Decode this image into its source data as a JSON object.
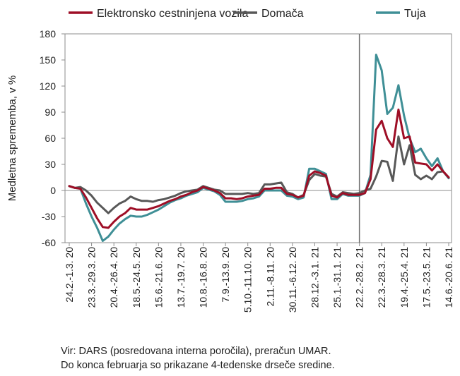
{
  "chart_data": {
    "type": "line",
    "title": "",
    "xlabel": "",
    "ylabel": "Medletna sprememba, v %",
    "ylim": [
      -60,
      180
    ],
    "yticks": [
      -60,
      -30,
      0,
      30,
      60,
      90,
      120,
      150,
      180
    ],
    "grid": false,
    "legend_position": "top",
    "x_tick_labels": [
      "24.2.-1.3. 20",
      "23.3.-29.3. 20",
      "20.4.-26.4. 20",
      "18.5.-24.5. 20",
      "15.6.-21.6. 20",
      "13.7.-19.7. 20",
      "10.8.-16.8. 20",
      "7.9.-13.9. 20",
      "5.10.-11.10. 20",
      "2.11.-8.11. 20",
      "30.11.-6.12. 20",
      "28.12.-3.1. 21",
      "25.1.-31.1. 21",
      "22.2.-28.2. 21",
      "22.3.-28.3. 21",
      "19.4.-25.4. 21",
      "17.5.-23.5. 21",
      "14.6.-20.6. 21"
    ],
    "x_tick_index": [
      0,
      4,
      8,
      12,
      16,
      20,
      24,
      28,
      32,
      36,
      40,
      44,
      48,
      52,
      56,
      60,
      64,
      68
    ],
    "vline_index": 52,
    "series": [
      {
        "name": "Elektronsko cestninjena vozila",
        "color": "#9e0e26",
        "values": [
          5,
          3,
          2,
          -8,
          -20,
          -32,
          -42,
          -43,
          -36,
          -30,
          -26,
          -20,
          -22,
          -22,
          -22,
          -20,
          -18,
          -15,
          -12,
          -10,
          -7,
          -5,
          -2,
          0,
          4,
          2,
          0,
          -3,
          -9,
          -9,
          -10,
          -9,
          -7,
          -6,
          -5,
          2,
          2,
          3,
          3,
          -4,
          -5,
          -8,
          -6,
          17,
          22,
          20,
          17,
          -6,
          -8,
          -3,
          -5,
          -5,
          -5,
          -3,
          13,
          70,
          80,
          60,
          50,
          93,
          60,
          62,
          32,
          31,
          30,
          23,
          30,
          22,
          15
        ]
      },
      {
        "name": "Domača",
        "color": "#585858",
        "values": [
          5,
          3,
          4,
          0,
          -6,
          -14,
          -20,
          -26,
          -20,
          -15,
          -12,
          -7,
          -10,
          -12,
          -12,
          -13,
          -11,
          -10,
          -8,
          -6,
          -3,
          -1,
          0,
          1,
          5,
          3,
          1,
          0,
          -4,
          -4,
          -4,
          -4,
          -3,
          -4,
          -3,
          7,
          7,
          8,
          9,
          -2,
          -4,
          -8,
          -5,
          12,
          19,
          17,
          16,
          -4,
          -7,
          -2,
          -3,
          -4,
          -3,
          0,
          2,
          16,
          34,
          33,
          11,
          62,
          30,
          52,
          18,
          13,
          17,
          13,
          21,
          22,
          15
        ]
      },
      {
        "name": "Tuja",
        "color": "#3f8f96",
        "values": [
          5,
          3,
          2,
          -15,
          -30,
          -43,
          -58,
          -53,
          -45,
          -38,
          -33,
          -29,
          -30,
          -30,
          -28,
          -25,
          -22,
          -18,
          -14,
          -11,
          -9,
          -6,
          -4,
          -2,
          3,
          1,
          -1,
          -5,
          -13,
          -13,
          -13,
          -12,
          -10,
          -9,
          -7,
          0,
          0,
          0,
          0,
          -6,
          -7,
          -10,
          -8,
          25,
          25,
          22,
          19,
          -10,
          -10,
          -4,
          -6,
          -6,
          -6,
          -3,
          18,
          156,
          138,
          88,
          95,
          121,
          86,
          60,
          44,
          48,
          37,
          28,
          37,
          22,
          14
        ]
      }
    ]
  },
  "source_note": {
    "line1": "Vir: DARS (posredovana interna poročila), preračun UMAR.",
    "line2": "Do konca februarja so prikazane 4-tedenske drseče sredine."
  }
}
